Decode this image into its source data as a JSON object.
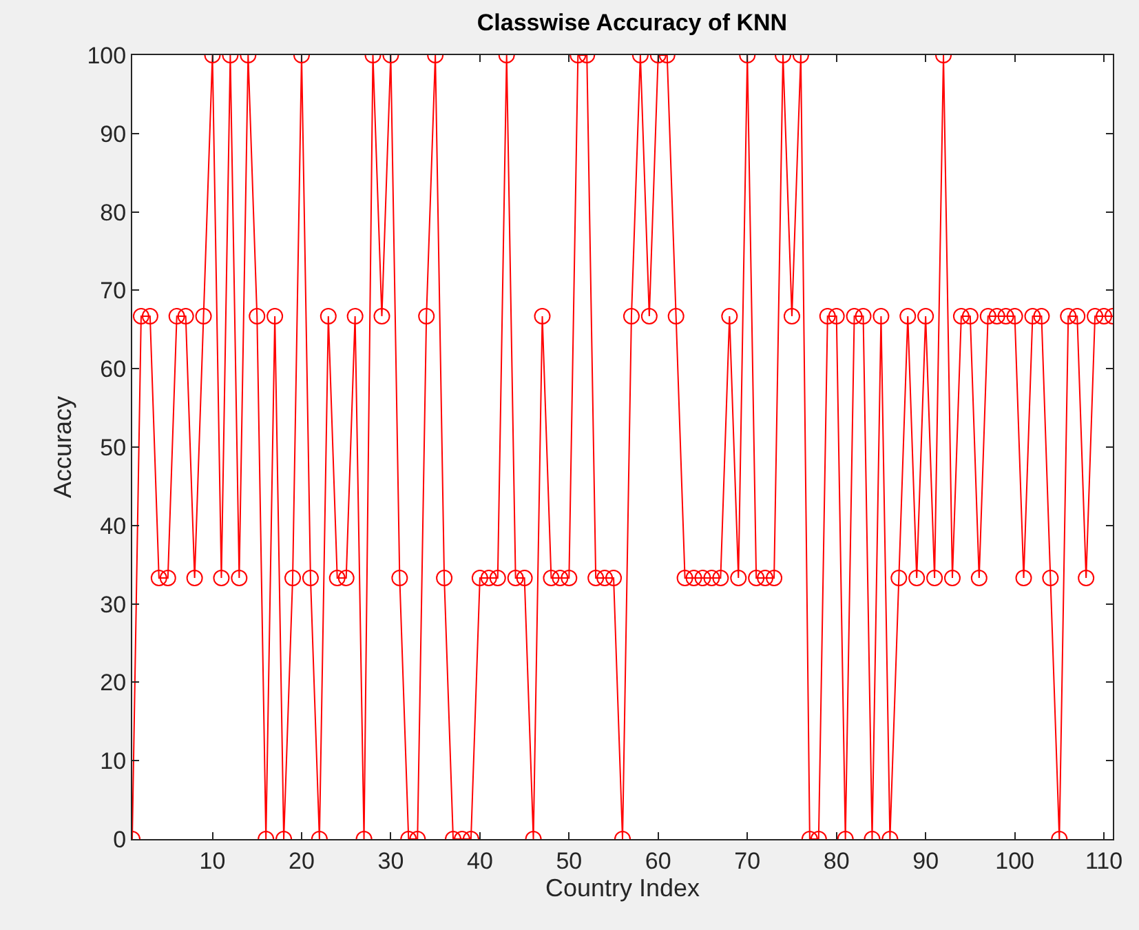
{
  "chart_data": {
    "type": "line",
    "title": "Classwise Accuracy of KNN",
    "xlabel": "Country Index",
    "ylabel": "Accuracy",
    "x": [
      1,
      2,
      3,
      4,
      5,
      6,
      7,
      8,
      9,
      10,
      11,
      12,
      13,
      14,
      15,
      16,
      17,
      18,
      19,
      20,
      21,
      22,
      23,
      24,
      25,
      26,
      27,
      28,
      29,
      30,
      31,
      32,
      33,
      34,
      35,
      36,
      37,
      38,
      39,
      40,
      41,
      42,
      43,
      44,
      45,
      46,
      47,
      48,
      49,
      50,
      51,
      52,
      53,
      54,
      55,
      56,
      57,
      58,
      59,
      60,
      61,
      62,
      63,
      64,
      65,
      66,
      67,
      68,
      69,
      70,
      71,
      72,
      73,
      74,
      75,
      76,
      77,
      78,
      79,
      80,
      81,
      82,
      83,
      84,
      85,
      86,
      87,
      88,
      89,
      90,
      91,
      92,
      93,
      94,
      95,
      96,
      97,
      98,
      99,
      100,
      101,
      102,
      103,
      104,
      105,
      106,
      107,
      108,
      109,
      110,
      111
    ],
    "series": [
      {
        "color": "#ff0000",
        "values": [
          0,
          66.7,
          66.7,
          33.3,
          33.3,
          66.7,
          66.7,
          33.3,
          66.7,
          100,
          33.3,
          100,
          33.3,
          100,
          66.7,
          0,
          66.7,
          0,
          33.3,
          100,
          33.3,
          0,
          66.7,
          33.3,
          33.3,
          66.7,
          0,
          100,
          66.7,
          100,
          33.3,
          0,
          0,
          66.7,
          100,
          33.3,
          0,
          0,
          0,
          33.3,
          33.3,
          33.3,
          100,
          33.3,
          33.3,
          0,
          66.7,
          33.3,
          33.3,
          33.3,
          100,
          100,
          33.3,
          33.3,
          33.3,
          0,
          66.7,
          100,
          66.7,
          100,
          100,
          66.7,
          33.3,
          33.3,
          33.3,
          33.3,
          33.3,
          66.7,
          33.3,
          100,
          33.3,
          33.3,
          33.3,
          100,
          66.7,
          100,
          0,
          0,
          66.7,
          66.7,
          0,
          66.7,
          66.7,
          0,
          66.7,
          0,
          33.3,
          66.7,
          33.3,
          66.7,
          33.3,
          100,
          33.3,
          66.7,
          66.7,
          33.3,
          66.7,
          66.7,
          66.7,
          66.7,
          33.3,
          66.7,
          66.7,
          33.3,
          0,
          66.7,
          66.7,
          33.3,
          66.7,
          66.7,
          66.7
        ]
      }
    ],
    "xlim": [
      1,
      111
    ],
    "xticks": [
      10,
      20,
      30,
      40,
      50,
      60,
      70,
      80,
      90,
      100,
      110
    ],
    "ylim": [
      0,
      100
    ],
    "yticks": [
      0,
      10,
      20,
      30,
      40,
      50,
      60,
      70,
      80,
      90,
      100
    ],
    "marker": "circle",
    "line_style": "solid"
  }
}
